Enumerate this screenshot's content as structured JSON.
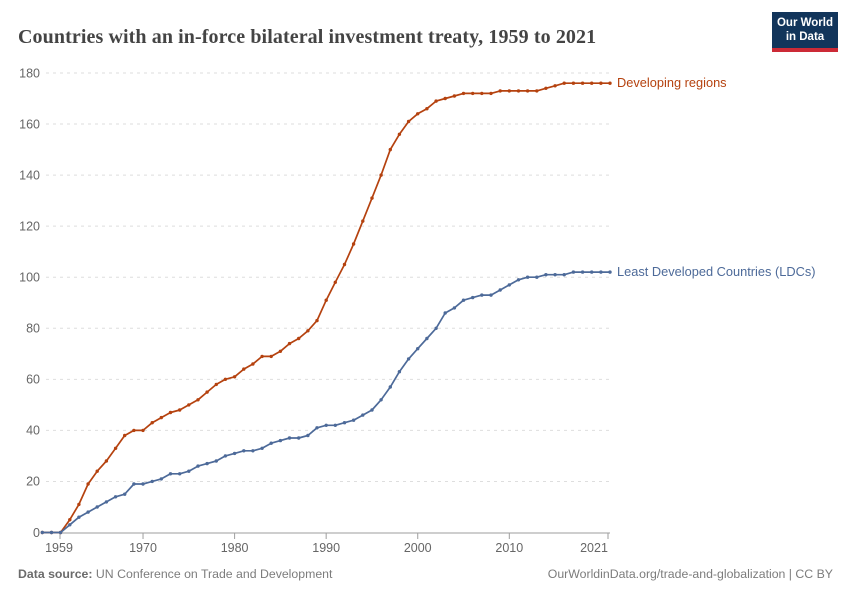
{
  "header": {
    "title": "Countries with an in-force bilateral investment treaty, 1959 to 2021",
    "logo": {
      "line1": "Our World",
      "line2": "in Data",
      "bg_color": "#12355b",
      "bar_color": "#cc2a36"
    }
  },
  "chart_data": {
    "type": "line",
    "title": "Countries with an in-force bilateral investment treaty, 1959 to 2021",
    "xlabel": "",
    "ylabel": "",
    "xlim": [
      1959,
      2021
    ],
    "ylim": [
      0,
      180
    ],
    "grid": true,
    "legend_position": "line-end-labels",
    "xticks": [
      1959,
      1970,
      1980,
      1990,
      2000,
      2010,
      2021
    ],
    "yticks": [
      0,
      20,
      40,
      60,
      80,
      100,
      120,
      140,
      160,
      180
    ],
    "x": [
      1959,
      1960,
      1961,
      1962,
      1963,
      1964,
      1965,
      1966,
      1967,
      1968,
      1969,
      1970,
      1971,
      1972,
      1973,
      1974,
      1975,
      1976,
      1977,
      1978,
      1979,
      1980,
      1981,
      1982,
      1983,
      1984,
      1985,
      1986,
      1987,
      1988,
      1989,
      1990,
      1991,
      1992,
      1993,
      1994,
      1995,
      1996,
      1997,
      1998,
      1999,
      2000,
      2001,
      2002,
      2003,
      2004,
      2005,
      2006,
      2007,
      2008,
      2009,
      2010,
      2011,
      2012,
      2013,
      2014,
      2015,
      2016,
      2017,
      2018,
      2019,
      2020,
      2021
    ],
    "series": [
      {
        "name": "Developing regions",
        "color": "#b5420f",
        "values": [
          0,
          0,
          0,
          5,
          11,
          19,
          24,
          28,
          33,
          38,
          40,
          40,
          43,
          45,
          47,
          48,
          50,
          52,
          55,
          58,
          60,
          61,
          64,
          66,
          69,
          69,
          71,
          74,
          76,
          79,
          83,
          91,
          98,
          105,
          113,
          122,
          131,
          140,
          150,
          156,
          161,
          164,
          166,
          169,
          170,
          171,
          172,
          172,
          172,
          172,
          173,
          173,
          173,
          173,
          173,
          174,
          175,
          176,
          176,
          176,
          176,
          176,
          176
        ]
      },
      {
        "name": "Least Developed Countries (LDCs)",
        "color": "#4d6a99",
        "values": [
          0,
          0,
          0,
          3,
          6,
          8,
          10,
          12,
          14,
          15,
          19,
          19,
          20,
          21,
          23,
          23,
          24,
          26,
          27,
          28,
          30,
          31,
          32,
          32,
          33,
          35,
          36,
          37,
          37,
          38,
          41,
          42,
          42,
          43,
          44,
          46,
          48,
          52,
          57,
          63,
          68,
          72,
          76,
          80,
          86,
          88,
          91,
          92,
          93,
          93,
          95,
          97,
          99,
          100,
          100,
          101,
          101,
          101,
          102,
          102,
          102,
          102,
          102
        ]
      }
    ]
  },
  "footer": {
    "source_label": "Data source:",
    "source_text": " UN Conference on Trade and Development",
    "link_text": "OurWorldinData.org/trade-and-globalization | CC BY"
  }
}
